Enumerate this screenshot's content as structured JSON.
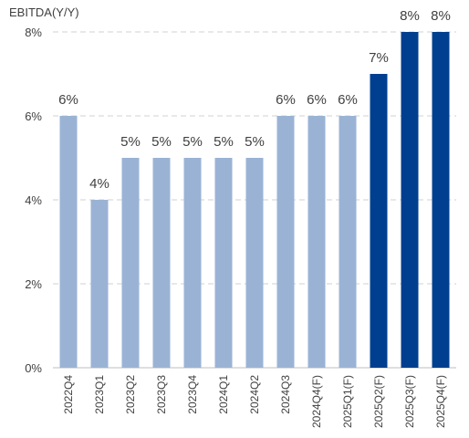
{
  "chart_data": {
    "type": "bar",
    "ylabel": "EBITDA(Y/Y)",
    "categories": [
      "2022Q4",
      "2023Q1",
      "2023Q2",
      "2023Q3",
      "2023Q4",
      "2024Q1",
      "2024Q2",
      "2024Q3",
      "2024Q4(F)",
      "2025Q1(F)",
      "2025Q2(F)",
      "2025Q3(F)",
      "2025Q4(F)"
    ],
    "values": [
      6,
      4,
      5,
      5,
      5,
      5,
      5,
      6,
      6,
      6,
      7,
      8,
      8
    ],
    "data_labels": [
      "6%",
      "4%",
      "5%",
      "5%",
      "5%",
      "5%",
      "5%",
      "6%",
      "6%",
      "6%",
      "7%",
      "8%",
      "8%"
    ],
    "bar_colors": [
      "#9ab3d5",
      "#9ab3d5",
      "#9ab3d5",
      "#9ab3d5",
      "#9ab3d5",
      "#9ab3d5",
      "#9ab3d5",
      "#9ab3d5",
      "#9ab3d5",
      "#9ab3d5",
      "#003f8f",
      "#003f8f",
      "#003f8f"
    ],
    "ylim": [
      0,
      8
    ],
    "yticks": [
      0,
      2,
      4,
      6,
      8
    ],
    "ytick_labels": [
      "0%",
      "2%",
      "4%",
      "6%",
      "8%"
    ],
    "grid": true
  }
}
